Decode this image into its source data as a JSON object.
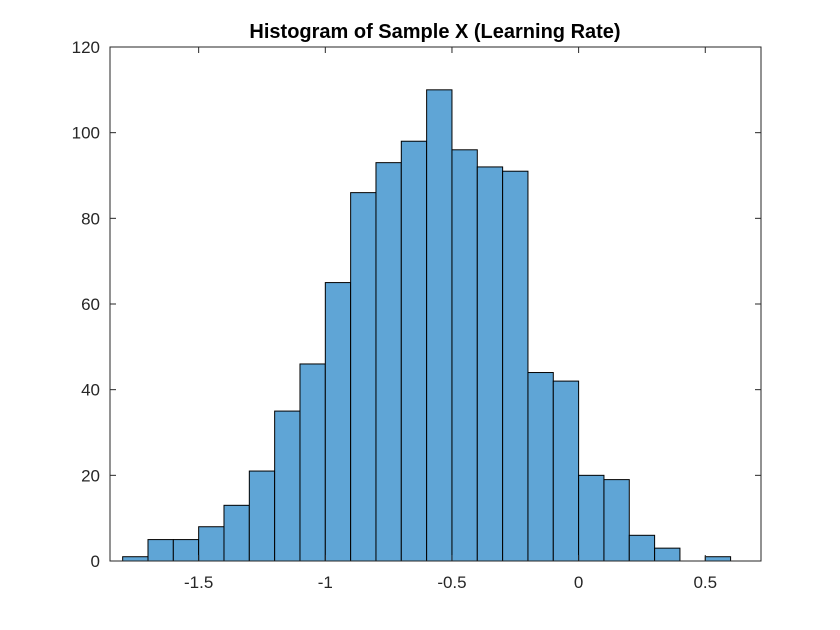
{
  "chart_data": {
    "type": "bar",
    "subtype": "histogram",
    "title": "Histogram of Sample X (Learning Rate)",
    "xlabel": "",
    "ylabel": "",
    "bin_edges": [
      -1.8,
      -1.7,
      -1.6,
      -1.5,
      -1.4,
      -1.3,
      -1.2,
      -1.1,
      -1.0,
      -0.9,
      -0.8,
      -0.7,
      -0.6,
      -0.5,
      -0.4,
      -0.3,
      -0.2,
      -0.1,
      0.0,
      0.1,
      0.2,
      0.3,
      0.4,
      0.5,
      0.6
    ],
    "values": [
      1,
      5,
      5,
      8,
      13,
      21,
      35,
      46,
      65,
      86,
      93,
      98,
      110,
      96,
      92,
      91,
      44,
      42,
      20,
      19,
      6,
      3,
      0,
      1
    ],
    "xlim": [
      -1.85,
      0.72
    ],
    "ylim": [
      0,
      120
    ],
    "xticks": [
      -1.5,
      -1,
      -0.5,
      0,
      0.5
    ],
    "xtick_labels": [
      "-1.5",
      "-1",
      "-0.5",
      "0",
      "0.5"
    ],
    "yticks": [
      0,
      20,
      40,
      60,
      80,
      100,
      120
    ],
    "ytick_labels": [
      "0",
      "20",
      "40",
      "60",
      "80",
      "100",
      "120"
    ],
    "grid": false,
    "legend": "none",
    "colors": {
      "bar_fill": "#5fa5d6",
      "bar_edge": "#000000",
      "axis": "#262626"
    }
  }
}
